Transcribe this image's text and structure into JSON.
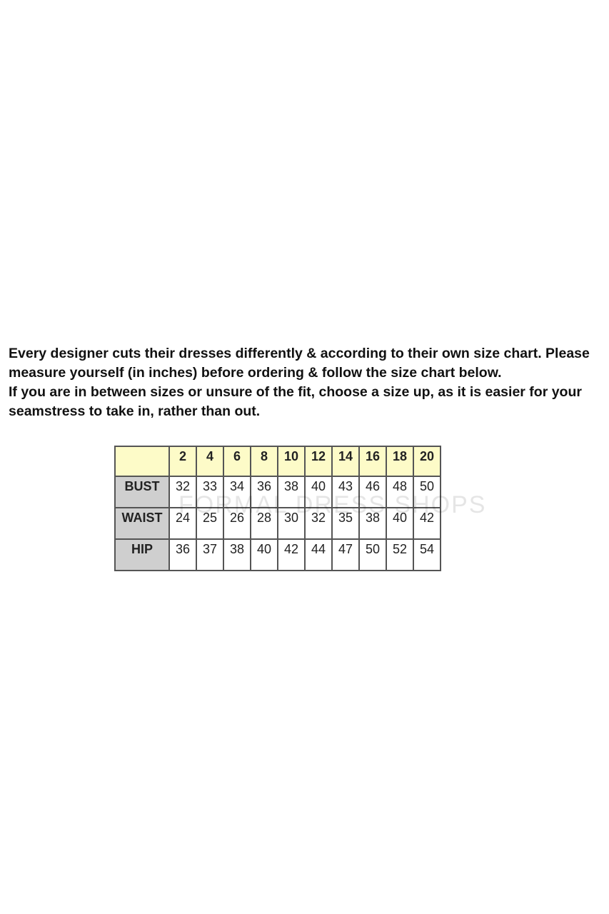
{
  "intro": {
    "line1": "Every designer cuts their dresses differently & according to their own size chart. Please measure yourself (in inches) before ordering & follow the size chart below.",
    "line2": "If you are in between sizes or unsure of the fit, choose a size up, as it is easier for your seamstress to take in, rather than out."
  },
  "table": {
    "sizes": [
      "2",
      "4",
      "6",
      "8",
      "10",
      "12",
      "14",
      "16",
      "18",
      "20"
    ],
    "rows": [
      {
        "label": "BUST",
        "values": [
          "32",
          "33",
          "34",
          "36",
          "38",
          "40",
          "43",
          "46",
          "48",
          "50"
        ]
      },
      {
        "label": "WAIST",
        "values": [
          "24",
          "25",
          "26",
          "28",
          "30",
          "32",
          "35",
          "38",
          "40",
          "42"
        ]
      },
      {
        "label": "HIP",
        "values": [
          "36",
          "37",
          "38",
          "40",
          "42",
          "44",
          "47",
          "50",
          "52",
          "54"
        ]
      }
    ]
  },
  "watermark": "FORMAL DRESS SHOPS"
}
